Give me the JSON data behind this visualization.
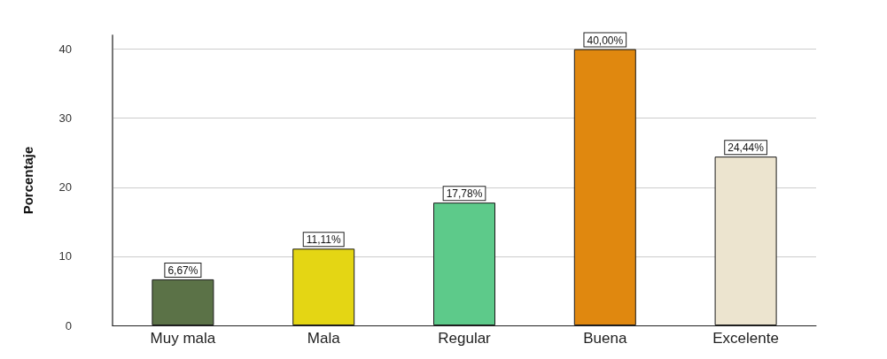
{
  "chart_data": {
    "type": "bar",
    "ylabel": "Porcentaje",
    "categories": [
      "Muy mala",
      "Mala",
      "Regular",
      "Buena",
      "Excelente"
    ],
    "values": [
      6.67,
      11.11,
      17.78,
      40.0,
      24.44
    ],
    "colors": [
      "#5b7247",
      "#e4d614",
      "#5dca8a",
      "#e0880f",
      "#ece4cf"
    ],
    "value_labels": [
      "6,67%",
      "11,11%",
      "17,78%",
      "40,00%",
      "24,44%"
    ],
    "ylim": [
      0,
      42
    ],
    "yticks": [
      0,
      10,
      20,
      30,
      40
    ],
    "grid": "y"
  }
}
